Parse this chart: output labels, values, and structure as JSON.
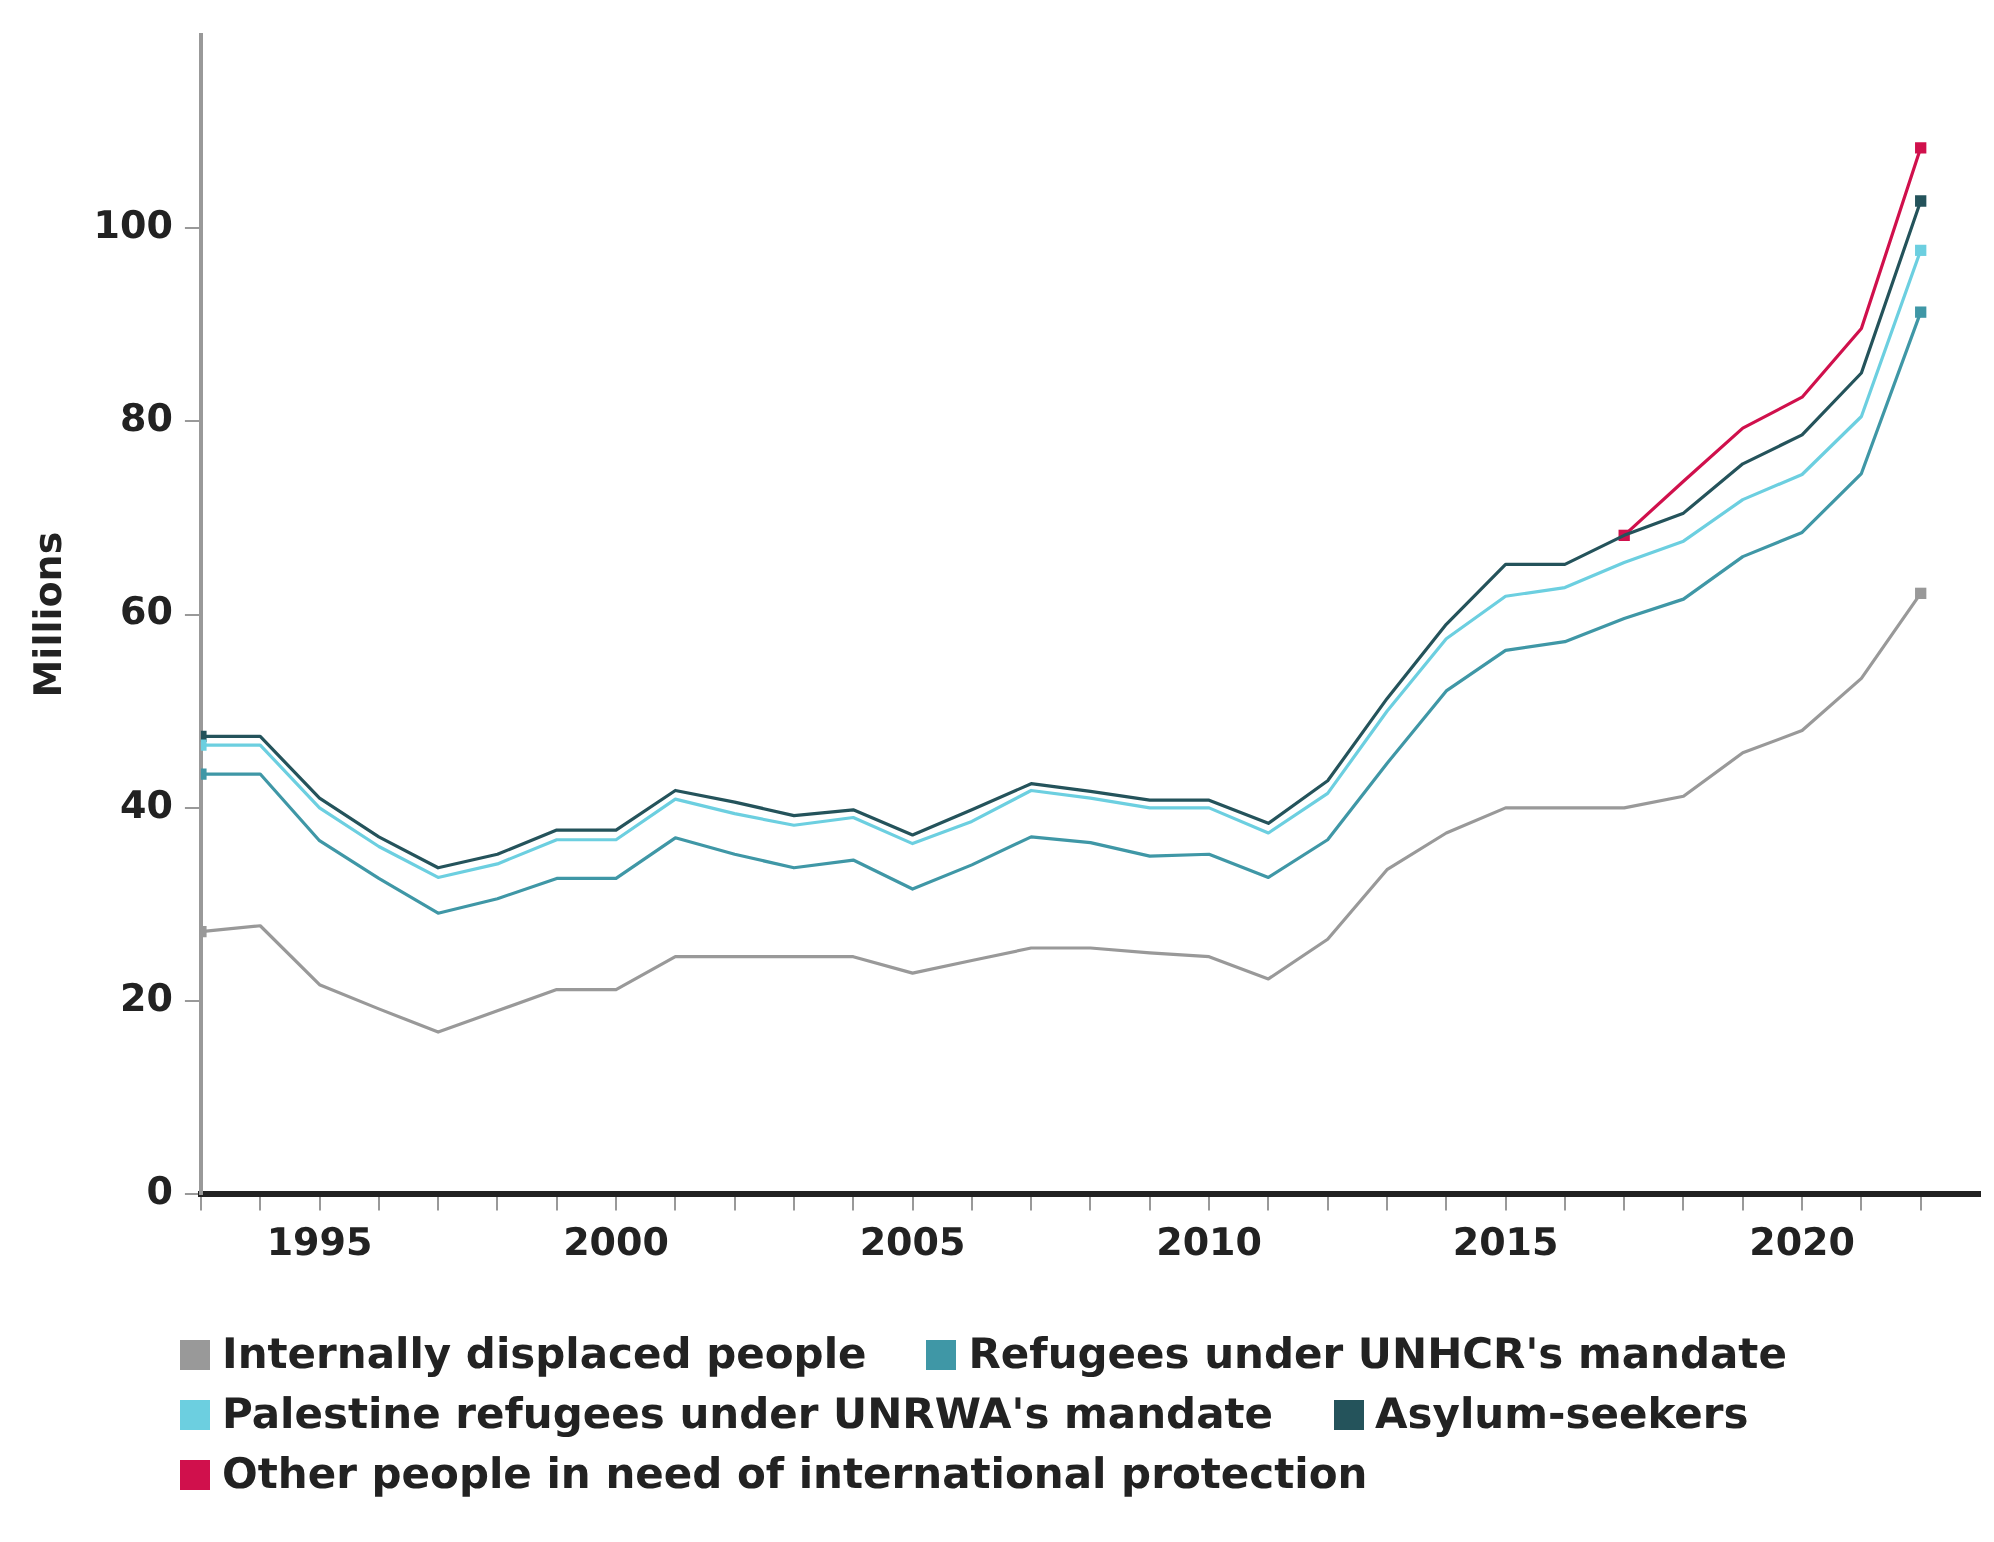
{
  "chart_data": {
    "type": "line",
    "ylabel": "Millions",
    "legend": "bottom",
    "line_style": "solid",
    "grid": false,
    "x": [
      1993,
      1994,
      1995,
      1996,
      1997,
      1998,
      1999,
      2000,
      2001,
      2002,
      2003,
      2004,
      2005,
      2006,
      2007,
      2008,
      2009,
      2010,
      2011,
      2012,
      2013,
      2014,
      2015,
      2016,
      2017,
      2018,
      2019,
      2020,
      2021,
      2022
    ],
    "xlim": [
      1993,
      2023
    ],
    "xticks": [
      {
        "value": 1993,
        "label": null
      },
      {
        "value": 1994,
        "label": null
      },
      1995,
      {
        "value": 1996,
        "label": null
      },
      {
        "value": 1997,
        "label": null
      },
      {
        "value": 1998,
        "label": null
      },
      {
        "value": 1999,
        "label": null
      },
      2000,
      {
        "value": 2001,
        "label": null
      },
      {
        "value": 2002,
        "label": null
      },
      {
        "value": 2003,
        "label": null
      },
      {
        "value": 2004,
        "label": null
      },
      2005,
      {
        "value": 2006,
        "label": null
      },
      {
        "value": 2007,
        "label": null
      },
      {
        "value": 2008,
        "label": null
      },
      {
        "value": 2009,
        "label": null
      },
      2010,
      {
        "value": 2011,
        "label": null
      },
      {
        "value": 2012,
        "label": null
      },
      {
        "value": 2013,
        "label": null
      },
      {
        "value": 2014,
        "label": null
      },
      2015,
      {
        "value": 2016,
        "label": null
      },
      {
        "value": 2017,
        "label": null
      },
      {
        "value": 2018,
        "label": null
      },
      {
        "value": 2019,
        "label": null
      },
      2020,
      {
        "value": 2021,
        "label": null
      },
      {
        "value": 2022,
        "label": null
      }
    ],
    "ylim": [
      0,
      120
    ],
    "yticks": [
      0,
      20,
      40,
      60,
      80,
      100
    ],
    "series": [
      {
        "name": "Internally displaced people",
        "color": "#999999",
        "values": [
          27.2,
          27.8,
          21.7,
          19.2,
          16.8,
          19.0,
          21.2,
          21.2,
          24.6,
          24.6,
          24.6,
          24.6,
          22.9,
          24.2,
          25.5,
          25.5,
          25.0,
          24.6,
          22.3,
          26.4,
          33.6,
          37.4,
          40.0,
          40.0,
          40.0,
          41.2,
          45.7,
          48.0,
          53.4,
          62.2
        ]
      },
      {
        "name": "Refugees under UNHCR's mandate",
        "color": "#3f97a6",
        "values": [
          43.5,
          43.5,
          36.6,
          32.7,
          29.1,
          30.6,
          32.7,
          32.7,
          36.9,
          35.2,
          33.8,
          34.6,
          31.6,
          34.1,
          37.0,
          36.4,
          35.0,
          35.2,
          32.8,
          36.7,
          44.6,
          52.1,
          56.3,
          57.2,
          59.6,
          61.6,
          66.0,
          68.5,
          74.6,
          91.3
        ]
      },
      {
        "name": "Palestine refugees under UNRWA's mandate",
        "color": "#6ccfe0",
        "values": [
          46.5,
          46.5,
          40.0,
          36.0,
          32.8,
          34.2,
          36.7,
          36.7,
          40.9,
          39.4,
          38.2,
          39.0,
          36.3,
          38.6,
          41.8,
          41.0,
          40.0,
          40.0,
          37.4,
          41.5,
          50.0,
          57.5,
          61.9,
          62.8,
          65.4,
          67.6,
          71.9,
          74.5,
          80.5,
          97.7
        ]
      },
      {
        "name": "Asylum-seekers",
        "color": "#24535b",
        "values": [
          47.4,
          47.4,
          41.0,
          37.0,
          33.8,
          35.2,
          37.7,
          37.7,
          41.8,
          40.6,
          39.2,
          39.8,
          37.2,
          39.8,
          42.5,
          41.7,
          40.8,
          40.8,
          38.4,
          42.8,
          51.3,
          59.0,
          65.2,
          65.2,
          68.2,
          70.5,
          75.6,
          78.6,
          85.0,
          102.8
        ]
      },
      {
        "name": "Other people in need of international protection",
        "color": "#d0104c",
        "values": [
          null,
          null,
          null,
          null,
          null,
          null,
          null,
          null,
          null,
          null,
          null,
          null,
          null,
          null,
          null,
          null,
          null,
          null,
          null,
          null,
          null,
          null,
          null,
          null,
          68.2,
          73.8,
          79.3,
          82.5,
          89.6,
          108.3
        ]
      }
    ]
  }
}
